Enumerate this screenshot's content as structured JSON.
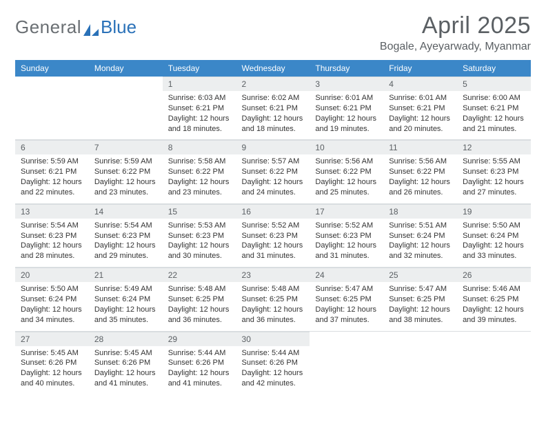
{
  "brand": {
    "general": "General",
    "blue": "Blue"
  },
  "colors": {
    "header_bg": "#3b87c8",
    "header_text": "#ffffff",
    "daynum_bg": "#eceeef",
    "logo_accent": "#2a71b8",
    "text_muted": "#5a5f63"
  },
  "title": "April 2025",
  "location": "Bogale, Ayeyarwady, Myanmar",
  "weekdays": [
    "Sunday",
    "Monday",
    "Tuesday",
    "Wednesday",
    "Thursday",
    "Friday",
    "Saturday"
  ],
  "weeks": [
    [
      {
        "empty": true
      },
      {
        "empty": true
      },
      {
        "day": "1",
        "sunrise": "6:03 AM",
        "sunset": "6:21 PM",
        "daylight": "12 hours and 18 minutes."
      },
      {
        "day": "2",
        "sunrise": "6:02 AM",
        "sunset": "6:21 PM",
        "daylight": "12 hours and 18 minutes."
      },
      {
        "day": "3",
        "sunrise": "6:01 AM",
        "sunset": "6:21 PM",
        "daylight": "12 hours and 19 minutes."
      },
      {
        "day": "4",
        "sunrise": "6:01 AM",
        "sunset": "6:21 PM",
        "daylight": "12 hours and 20 minutes."
      },
      {
        "day": "5",
        "sunrise": "6:00 AM",
        "sunset": "6:21 PM",
        "daylight": "12 hours and 21 minutes."
      }
    ],
    [
      {
        "day": "6",
        "sunrise": "5:59 AM",
        "sunset": "6:21 PM",
        "daylight": "12 hours and 22 minutes."
      },
      {
        "day": "7",
        "sunrise": "5:59 AM",
        "sunset": "6:22 PM",
        "daylight": "12 hours and 23 minutes."
      },
      {
        "day": "8",
        "sunrise": "5:58 AM",
        "sunset": "6:22 PM",
        "daylight": "12 hours and 23 minutes."
      },
      {
        "day": "9",
        "sunrise": "5:57 AM",
        "sunset": "6:22 PM",
        "daylight": "12 hours and 24 minutes."
      },
      {
        "day": "10",
        "sunrise": "5:56 AM",
        "sunset": "6:22 PM",
        "daylight": "12 hours and 25 minutes."
      },
      {
        "day": "11",
        "sunrise": "5:56 AM",
        "sunset": "6:22 PM",
        "daylight": "12 hours and 26 minutes."
      },
      {
        "day": "12",
        "sunrise": "5:55 AM",
        "sunset": "6:23 PM",
        "daylight": "12 hours and 27 minutes."
      }
    ],
    [
      {
        "day": "13",
        "sunrise": "5:54 AM",
        "sunset": "6:23 PM",
        "daylight": "12 hours and 28 minutes."
      },
      {
        "day": "14",
        "sunrise": "5:54 AM",
        "sunset": "6:23 PM",
        "daylight": "12 hours and 29 minutes."
      },
      {
        "day": "15",
        "sunrise": "5:53 AM",
        "sunset": "6:23 PM",
        "daylight": "12 hours and 30 minutes."
      },
      {
        "day": "16",
        "sunrise": "5:52 AM",
        "sunset": "6:23 PM",
        "daylight": "12 hours and 31 minutes."
      },
      {
        "day": "17",
        "sunrise": "5:52 AM",
        "sunset": "6:23 PM",
        "daylight": "12 hours and 31 minutes."
      },
      {
        "day": "18",
        "sunrise": "5:51 AM",
        "sunset": "6:24 PM",
        "daylight": "12 hours and 32 minutes."
      },
      {
        "day": "19",
        "sunrise": "5:50 AM",
        "sunset": "6:24 PM",
        "daylight": "12 hours and 33 minutes."
      }
    ],
    [
      {
        "day": "20",
        "sunrise": "5:50 AM",
        "sunset": "6:24 PM",
        "daylight": "12 hours and 34 minutes."
      },
      {
        "day": "21",
        "sunrise": "5:49 AM",
        "sunset": "6:24 PM",
        "daylight": "12 hours and 35 minutes."
      },
      {
        "day": "22",
        "sunrise": "5:48 AM",
        "sunset": "6:25 PM",
        "daylight": "12 hours and 36 minutes."
      },
      {
        "day": "23",
        "sunrise": "5:48 AM",
        "sunset": "6:25 PM",
        "daylight": "12 hours and 36 minutes."
      },
      {
        "day": "24",
        "sunrise": "5:47 AM",
        "sunset": "6:25 PM",
        "daylight": "12 hours and 37 minutes."
      },
      {
        "day": "25",
        "sunrise": "5:47 AM",
        "sunset": "6:25 PM",
        "daylight": "12 hours and 38 minutes."
      },
      {
        "day": "26",
        "sunrise": "5:46 AM",
        "sunset": "6:25 PM",
        "daylight": "12 hours and 39 minutes."
      }
    ],
    [
      {
        "day": "27",
        "sunrise": "5:45 AM",
        "sunset": "6:26 PM",
        "daylight": "12 hours and 40 minutes."
      },
      {
        "day": "28",
        "sunrise": "5:45 AM",
        "sunset": "6:26 PM",
        "daylight": "12 hours and 41 minutes."
      },
      {
        "day": "29",
        "sunrise": "5:44 AM",
        "sunset": "6:26 PM",
        "daylight": "12 hours and 41 minutes."
      },
      {
        "day": "30",
        "sunrise": "5:44 AM",
        "sunset": "6:26 PM",
        "daylight": "12 hours and 42 minutes."
      },
      {
        "empty": true
      },
      {
        "empty": true
      },
      {
        "empty": true
      }
    ]
  ],
  "labels": {
    "sunrise": "Sunrise: ",
    "sunset": "Sunset: ",
    "daylight": "Daylight: "
  }
}
